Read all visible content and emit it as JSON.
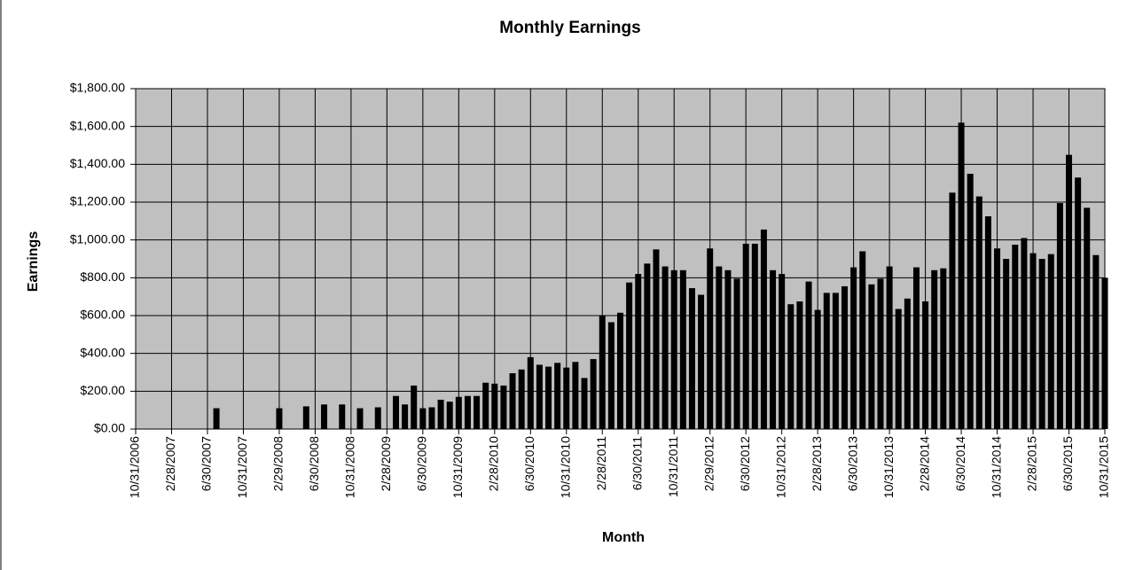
{
  "chart_data": {
    "type": "bar",
    "title": "Monthly Earnings",
    "x_label": "Month",
    "y_label": "Earnings",
    "categories": [
      "10/31/2006",
      null,
      null,
      null,
      "2/28/2007",
      null,
      null,
      null,
      "6/30/2007",
      null,
      null,
      null,
      "10/31/2007",
      null,
      null,
      null,
      "2/29/2008",
      null,
      null,
      null,
      "6/30/2008",
      null,
      null,
      null,
      "10/31/2008",
      null,
      null,
      null,
      "2/28/2009",
      null,
      null,
      null,
      "6/30/2009",
      null,
      null,
      null,
      "10/31/2009",
      null,
      null,
      null,
      "2/28/2010",
      null,
      null,
      null,
      "6/30/2010",
      null,
      null,
      null,
      "10/31/2010",
      null,
      null,
      null,
      "2/28/2011",
      null,
      null,
      null,
      "6/30/2011",
      null,
      null,
      null,
      "10/31/2011",
      null,
      null,
      null,
      "2/29/2012",
      null,
      null,
      null,
      "6/30/2012",
      null,
      null,
      null,
      "10/31/2012",
      null,
      null,
      null,
      "2/28/2013",
      null,
      null,
      null,
      "6/30/2013",
      null,
      null,
      null,
      "10/31/2013",
      null,
      null,
      null,
      "2/28/2014",
      null,
      null,
      null,
      "6/30/2014",
      null,
      null,
      null,
      "10/31/2014",
      null,
      null,
      null,
      "2/28/2015",
      null,
      null,
      null,
      "6/30/2015",
      null,
      null,
      null,
      "10/31/2015"
    ],
    "values": [
      null,
      null,
      null,
      null,
      null,
      null,
      null,
      null,
      null,
      110,
      null,
      null,
      null,
      null,
      null,
      null,
      110,
      null,
      null,
      120,
      null,
      130,
      null,
      130,
      null,
      110,
      null,
      115,
      null,
      175,
      130,
      230,
      110,
      115,
      155,
      145,
      170,
      175,
      175,
      245,
      240,
      230,
      295,
      315,
      380,
      340,
      330,
      350,
      325,
      355,
      270,
      370,
      600,
      565,
      615,
      775,
      820,
      875,
      950,
      860,
      840,
      840,
      745,
      710,
      955,
      860,
      840,
      795,
      980,
      980,
      1055,
      840,
      820,
      660,
      675,
      780,
      630,
      720,
      720,
      755,
      855,
      940,
      765,
      795,
      860,
      635,
      690,
      855,
      675,
      840,
      850,
      1250,
      1620,
      1350,
      1230,
      1125,
      955,
      900,
      975,
      1010,
      930,
      900,
      925,
      1195,
      1450,
      1330,
      1170,
      920,
      800
    ],
    "color": "#000000",
    "plot_background": "#c0c0c0",
    "ylim": [
      0,
      1800
    ],
    "yticks": [
      {
        "value": 0,
        "label": "$0.00"
      },
      {
        "value": 200,
        "label": "$200.00"
      },
      {
        "value": 400,
        "label": "$400.00"
      },
      {
        "value": 600,
        "label": "$600.00"
      },
      {
        "value": 800,
        "label": "$800.00"
      },
      {
        "value": 1000,
        "label": "$1,000.00"
      },
      {
        "value": 1200,
        "label": "$1,200.00"
      },
      {
        "value": 1400,
        "label": "$1,400.00"
      },
      {
        "value": 1600,
        "label": "$1,600.00"
      },
      {
        "value": 1800,
        "label": "$1,800.00"
      }
    ],
    "grid": true
  }
}
